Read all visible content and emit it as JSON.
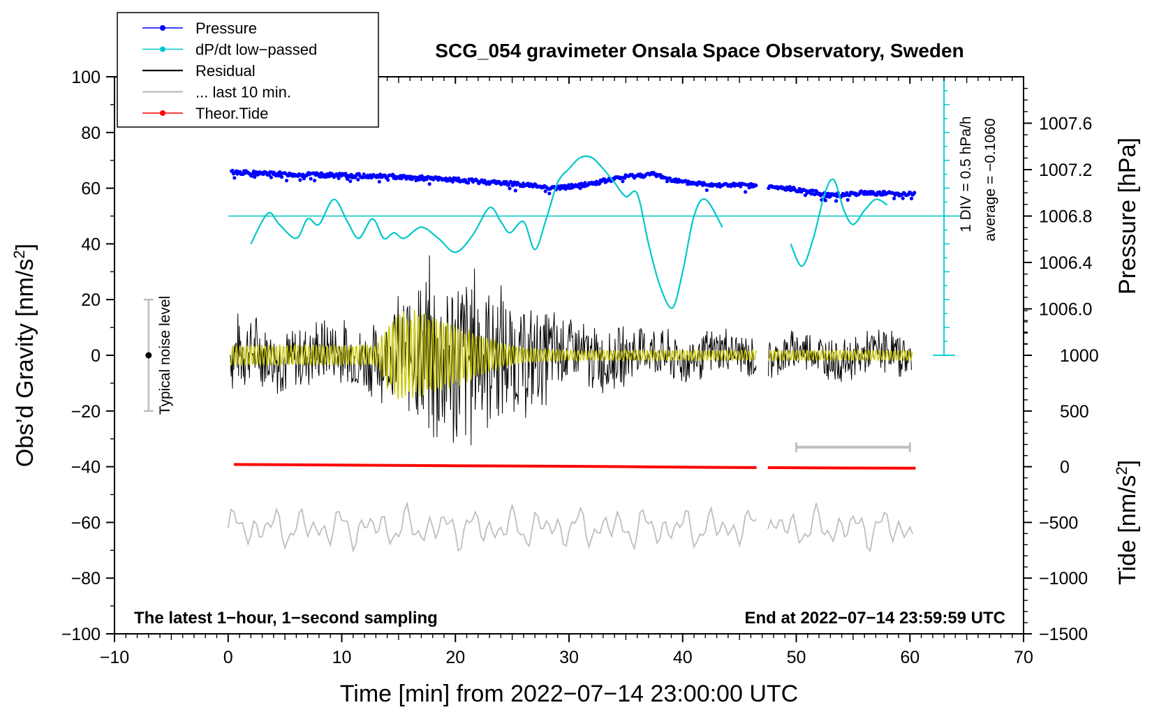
{
  "chart_data": {
    "type": "line",
    "title": "SCG_054 gravimeter Onsala Space Observatory, Sweden",
    "xlabel": "Time [min] from 2022−07−14 23:00:00 UTC",
    "ylabel": "Obs’d Gravity [nm/s²]",
    "ylabel_main": "Obs’d Gravity [nm/s",
    "ylabel_sup": "2",
    "ylabel_close": "]",
    "xlim": [
      -10,
      70
    ],
    "ylim": [
      -100,
      100
    ],
    "x_ticks": [
      -10,
      0,
      10,
      20,
      30,
      40,
      50,
      60,
      70
    ],
    "x_tick_labels": [
      "−10",
      "0",
      "10",
      "20",
      "30",
      "40",
      "50",
      "60",
      "70"
    ],
    "y_ticks": [
      -100,
      -80,
      -60,
      -40,
      -20,
      0,
      20,
      40,
      60,
      80,
      100
    ],
    "y_tick_labels": [
      "−100",
      "−80",
      "−60",
      "−40",
      "−20",
      "0",
      "20",
      "40",
      "60",
      "80",
      "100"
    ],
    "pressure_axis": {
      "label": "Pressure [hPa]",
      "ticks": [
        1006.0,
        1006.4,
        1006.8,
        1007.2,
        1007.6
      ],
      "tick_labels": [
        "1006.0",
        "1006.4",
        "1006.8",
        "1007.2",
        "1007.6"
      ],
      "range_in_gravity_units": [
        0,
        100
      ],
      "range": [
        1005.6,
        1008.0
      ]
    },
    "tide_axis": {
      "label_main": "Tide [nm/s",
      "label_sup": "2",
      "label_close": "]",
      "ticks": [
        -1500,
        -1000,
        -500,
        0,
        500,
        1000
      ],
      "tick_labels": [
        "−1500",
        "−1000",
        "−500",
        "0",
        "500",
        "1000"
      ],
      "range": [
        -1500,
        1500
      ],
      "range_in_gravity_units": [
        -100,
        20
      ]
    },
    "dpdt_scale": {
      "reference_level_gravity_units": 50,
      "div_label": "1 DIV = 0.5 hPa/h",
      "average_label": "average = −0.1060",
      "scale_bar_x": 63,
      "scale_bar_range": [
        0,
        100
      ],
      "divisions": 20
    },
    "noise_bar": {
      "label": "Typical noise level",
      "x": -7,
      "center": 0,
      "half_range": 20
    },
    "last10_bar": {
      "x_range": [
        50,
        60
      ],
      "y": -33
    },
    "annotation_left": "The latest 1−hour, 1−second sampling",
    "annotation_right": "End at 2022−07−14 23:59:59 UTC",
    "legend": [
      {
        "label": "Pressure",
        "color": "#0000ff",
        "marker": "dot"
      },
      {
        "label": "dP/dt low−passed",
        "color": "#00c8c8",
        "marker": "dot"
      },
      {
        "label": "Residual",
        "color": "#000000",
        "marker": "none"
      },
      {
        "label": "... last 10 min.",
        "color": "#bebebe",
        "marker": "none"
      },
      {
        "label": "Theor.Tide",
        "color": "#ff0000",
        "marker": "dot"
      }
    ],
    "data_gap": [
      46.5,
      47.5
    ],
    "series": [
      {
        "name": "Pressure",
        "color": "#0000ff",
        "unit": "hPa",
        "x": [
          0,
          5,
          10,
          15,
          20,
          25,
          29,
          32,
          35,
          37.5,
          40,
          43,
          46.5,
          47.5,
          50,
          53,
          56,
          60
        ],
        "values": [
          1007.18,
          1007.16,
          1007.15,
          1007.14,
          1007.11,
          1007.08,
          1007.04,
          1007.08,
          1007.14,
          1007.16,
          1007.09,
          1007.07,
          1007.06,
          1007.05,
          1007.03,
          1006.98,
          1007.0,
          1006.99
        ]
      },
      {
        "name": "dP/dt low−passed",
        "color": "#00c8c8",
        "unit": "gravity-plot units",
        "x": [
          2,
          3.5,
          4.5,
          6,
          7,
          8,
          9.3,
          10.5,
          11.5,
          12.7,
          13.7,
          14.6,
          15.5,
          17,
          18.5,
          20,
          21.5,
          23,
          24,
          24.8,
          26,
          27,
          28,
          29,
          30,
          31,
          32,
          33,
          34,
          35,
          36,
          37,
          38,
          39.1,
          40,
          41,
          42,
          43.5
        ],
        "values": [
          40,
          51,
          47,
          42,
          49,
          47,
          56,
          48,
          42,
          49,
          42,
          44,
          42,
          46,
          42,
          37,
          43,
          53,
          48,
          44,
          48,
          38,
          49,
          62,
          67,
          71,
          71,
          67,
          62,
          57,
          58,
          40,
          25,
          17,
          30,
          50,
          56,
          46
        ]
      },
      {
        "name": "dP/dt low−passed (after gap)",
        "color": "#00c8c8",
        "unit": "gravity-plot units",
        "x": [
          49.5,
          50.5,
          51.5,
          52.5,
          53.3,
          54.2,
          55,
          56,
          57,
          58
        ],
        "values": [
          40,
          32,
          42,
          58,
          63,
          52,
          47,
          52,
          56,
          54
        ]
      },
      {
        "name": "Residual envelope",
        "color": "#000000",
        "unit": "nm/s²",
        "x": [
          0,
          5,
          10,
          13,
          14.5,
          16,
          17,
          18.5,
          20,
          21.5,
          23,
          25,
          28,
          30,
          35,
          40,
          46.5,
          47.5,
          55,
          60
        ],
        "values": [
          16,
          14,
          14,
          15,
          20,
          27,
          35,
          42,
          42,
          38,
          33,
          24,
          20,
          15,
          12,
          10,
          9,
          9,
          9,
          9
        ]
      },
      {
        "name": "Residual low−passed envelope",
        "color": "#c8c800",
        "unit": "nm/s²",
        "x": [
          0,
          13,
          14,
          15,
          17,
          18.5,
          20,
          22,
          24,
          26,
          30,
          46.5,
          47.5,
          60
        ],
        "values": [
          4,
          4,
          12,
          17,
          16,
          15,
          12,
          8,
          5,
          3,
          2,
          2,
          2,
          2
        ]
      },
      {
        "name": "... last 10 min.",
        "color": "#bebebe",
        "unit": "nm/s² (offset)",
        "x": [
          0,
          60
        ],
        "values": [
          -62,
          -62
        ]
      },
      {
        "name": "Theor.Tide",
        "color": "#ff0000",
        "unit": "nm/s²",
        "x": [
          0.5,
          10,
          20,
          30,
          40,
          46.5,
          47.5,
          55,
          60.5
        ],
        "values": [
          20,
          15,
          9,
          4,
          -4,
          -8,
          -8,
          -12,
          -14
        ]
      }
    ]
  }
}
